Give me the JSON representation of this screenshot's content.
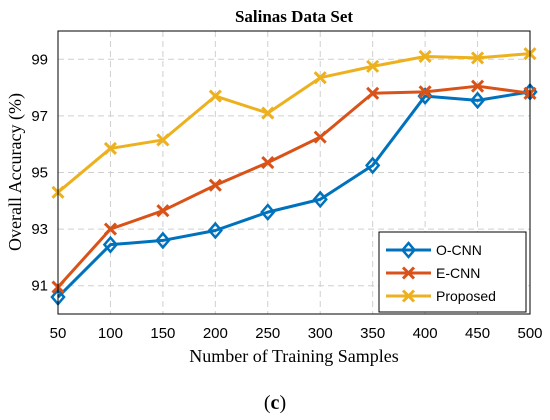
{
  "chart_data": {
    "type": "line",
    "title": "Salinas Data Set",
    "xlabel": "Number of Training Samples",
    "ylabel": "Overall Accuracy (%)",
    "x": [
      50,
      100,
      150,
      200,
      250,
      300,
      350,
      400,
      450,
      500
    ],
    "xlim": [
      50,
      500
    ],
    "ylim": [
      90,
      100
    ],
    "xticks": [
      "50",
      "100",
      "150",
      "200",
      "250",
      "300",
      "350",
      "400",
      "450",
      "500"
    ],
    "yticks": [
      "91",
      "93",
      "95",
      "97",
      "99"
    ],
    "grid": true,
    "legend_position": "bottom-right",
    "series": [
      {
        "name": "O-CNN",
        "color": "#0072BD",
        "marker": "diamond",
        "values": [
          90.6,
          92.45,
          92.6,
          92.95,
          93.6,
          94.05,
          95.25,
          97.7,
          97.55,
          97.85
        ]
      },
      {
        "name": "E-CNN",
        "color": "#D95319",
        "marker": "x",
        "values": [
          90.95,
          93.0,
          93.65,
          94.55,
          95.35,
          96.25,
          97.8,
          97.85,
          98.05,
          97.8
        ]
      },
      {
        "name": "Proposed",
        "color": "#EDB120",
        "marker": "x",
        "values": [
          94.3,
          95.85,
          96.15,
          97.7,
          97.1,
          98.35,
          98.75,
          99.1,
          99.05,
          99.2
        ]
      }
    ]
  },
  "caption": {
    "open": "(",
    "letter": "c",
    "close": ")"
  }
}
